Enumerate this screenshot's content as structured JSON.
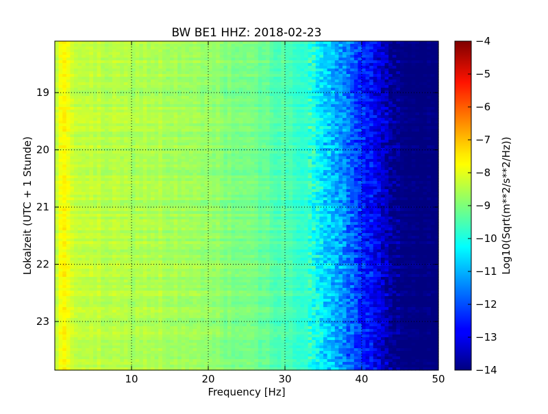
{
  "chart_data": {
    "type": "heatmap",
    "title": "BW BE1 HHZ: 2018-02-23",
    "xlabel": "Frequency [Hz]",
    "ylabel": "Lokalzeit (UTC + 1 Stunde)",
    "xlim": [
      0,
      50
    ],
    "ylim_hours": [
      18.1,
      23.85
    ],
    "y_axis_direction": "time increases downward",
    "x_ticks": [
      "10",
      "20",
      "30",
      "40",
      "50"
    ],
    "x_tick_values": [
      10,
      20,
      30,
      40,
      50
    ],
    "y_ticks": [
      "19",
      "20",
      "21",
      "22",
      "23"
    ],
    "y_tick_values": [
      19,
      20,
      21,
      22,
      23
    ],
    "grid": true,
    "colormap": "jet",
    "colorbar": {
      "label": "Log10(Sqrt(m**2/s**2/Hz))",
      "range": [
        -14,
        -4
      ],
      "ticks": [
        "−4",
        "−5",
        "−6",
        "−7",
        "−8",
        "−9",
        "−10",
        "−11",
        "−12",
        "−13",
        "−14"
      ],
      "tick_values": [
        -4,
        -5,
        -6,
        -7,
        -8,
        -9,
        -10,
        -11,
        -12,
        -13,
        -14
      ]
    },
    "spectrum_profile": {
      "frequency_hz": [
        0,
        0.5,
        1,
        1.5,
        2,
        3,
        5,
        8,
        10,
        13,
        15,
        20,
        25,
        28,
        30,
        33,
        34,
        35,
        37,
        39,
        40,
        42,
        43.5,
        44,
        44.5,
        50
      ],
      "log_amplitude": [
        -8.6,
        -8.2,
        -7.7,
        -7.8,
        -8.1,
        -8.3,
        -8.4,
        -8.5,
        -8.55,
        -8.5,
        -8.65,
        -8.8,
        -9.1,
        -9.3,
        -9.5,
        -9.8,
        -10.1,
        -10.5,
        -11.2,
        -11.9,
        -12.3,
        -12.9,
        -13.4,
        -13.9,
        -14,
        -14
      ]
    }
  }
}
